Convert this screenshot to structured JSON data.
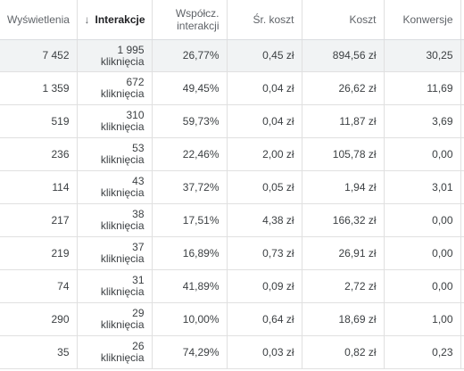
{
  "columns": [
    {
      "label": "Wyświetlenia"
    },
    {
      "label": "Interakcje",
      "sorted": true,
      "sort_icon": "arrow-down-icon"
    },
    {
      "label_line1": "Współcz.",
      "label_line2": "interakcji"
    },
    {
      "label": "Śr. koszt"
    },
    {
      "label": "Koszt"
    },
    {
      "label": "Konwersje"
    }
  ],
  "rows": [
    {
      "views": "7 452",
      "clicks": "1 995",
      "clicks_unit": "kliknięcia",
      "rate": "26,77%",
      "avg_cost": "0,45 zł",
      "cost": "894,56 zł",
      "conversions": "30,25"
    },
    {
      "views": "1 359",
      "clicks": "672",
      "clicks_unit": "kliknięcia",
      "rate": "49,45%",
      "avg_cost": "0,04 zł",
      "cost": "26,62 zł",
      "conversions": "11,69"
    },
    {
      "views": "519",
      "clicks": "310",
      "clicks_unit": "kliknięcia",
      "rate": "59,73%",
      "avg_cost": "0,04 zł",
      "cost": "11,87 zł",
      "conversions": "3,69"
    },
    {
      "views": "236",
      "clicks": "53",
      "clicks_unit": "kliknięcia",
      "rate": "22,46%",
      "avg_cost": "2,00 zł",
      "cost": "105,78 zł",
      "conversions": "0,00"
    },
    {
      "views": "114",
      "clicks": "43",
      "clicks_unit": "kliknięcia",
      "rate": "37,72%",
      "avg_cost": "0,05 zł",
      "cost": "1,94 zł",
      "conversions": "3,01"
    },
    {
      "views": "217",
      "clicks": "38",
      "clicks_unit": "kliknięcia",
      "rate": "17,51%",
      "avg_cost": "4,38 zł",
      "cost": "166,32 zł",
      "conversions": "0,00"
    },
    {
      "views": "219",
      "clicks": "37",
      "clicks_unit": "kliknięcia",
      "rate": "16,89%",
      "avg_cost": "0,73 zł",
      "cost": "26,91 zł",
      "conversions": "0,00"
    },
    {
      "views": "74",
      "clicks": "31",
      "clicks_unit": "kliknięcia",
      "rate": "41,89%",
      "avg_cost": "0,09 zł",
      "cost": "2,72 zł",
      "conversions": "0,00"
    },
    {
      "views": "290",
      "clicks": "29",
      "clicks_unit": "kliknięcia",
      "rate": "10,00%",
      "avg_cost": "0,64 zł",
      "cost": "18,69 zł",
      "conversions": "1,00"
    },
    {
      "views": "35",
      "clicks": "26",
      "clicks_unit": "kliknięcia",
      "rate": "74,29%",
      "avg_cost": "0,03 zł",
      "cost": "0,82 zł",
      "conversions": "0,23"
    }
  ]
}
